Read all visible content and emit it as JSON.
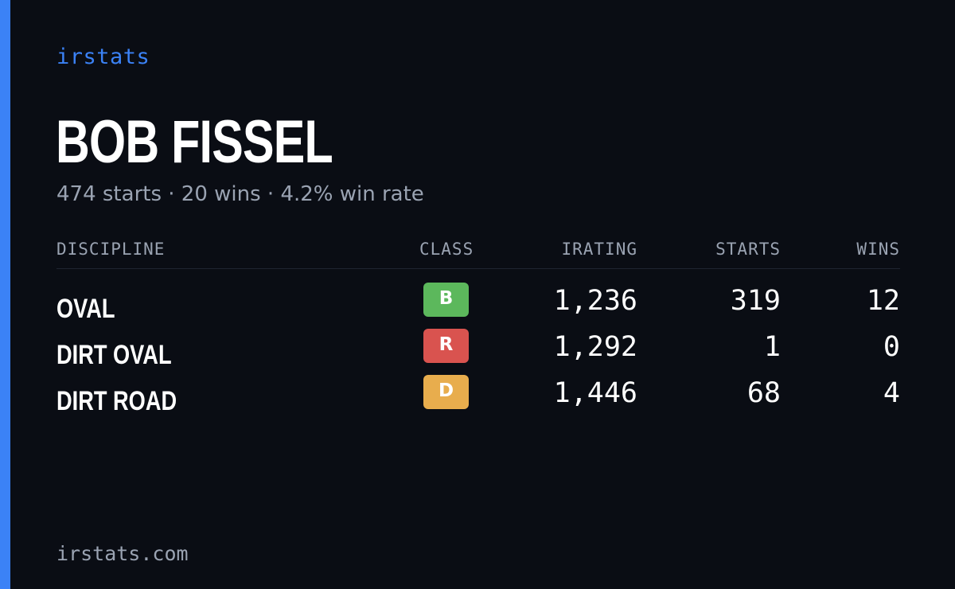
{
  "brand": "irstats",
  "driver": {
    "name": "BOB FISSEL",
    "summary": "474 starts · 20 wins · 4.2% win rate"
  },
  "table": {
    "headers": {
      "discipline": "DISCIPLINE",
      "class": "CLASS",
      "irating": "IRATING",
      "starts": "STARTS",
      "wins": "WINS"
    },
    "rows": [
      {
        "discipline": "OVAL",
        "class": "B",
        "class_color": "#5cb85c",
        "irating": "1,236",
        "starts": "319",
        "wins": "12"
      },
      {
        "discipline": "DIRT OVAL",
        "class": "R",
        "class_color": "#d9534f",
        "irating": "1,292",
        "starts": "1",
        "wins": "0"
      },
      {
        "discipline": "DIRT ROAD",
        "class": "D",
        "class_color": "#e8ad4d",
        "irating": "1,446",
        "starts": "68",
        "wins": "4"
      }
    ]
  },
  "footer": "irstats.com",
  "colors": {
    "accent": "#3b82f6",
    "background": "#0a0d14"
  }
}
